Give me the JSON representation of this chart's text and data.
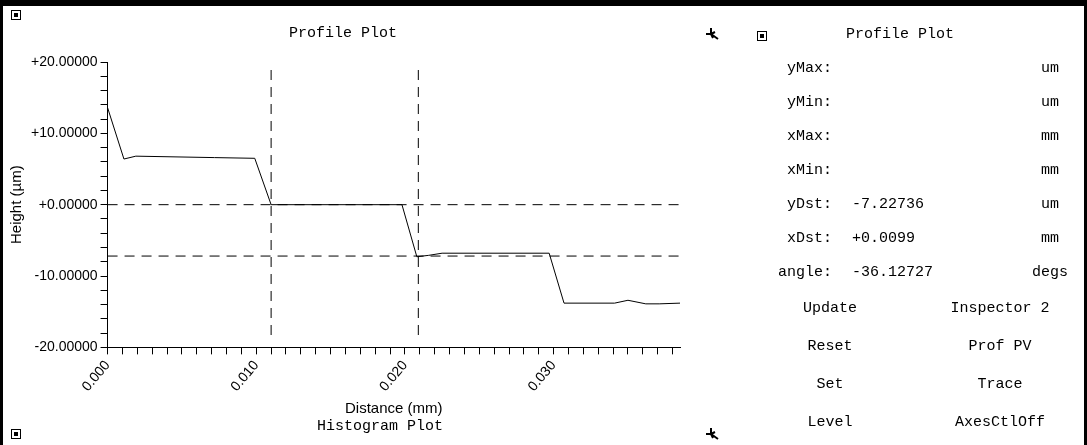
{
  "chart_data": [
    {
      "type": "line",
      "title": "Profile Plot",
      "xlabel": "Distance (mm)",
      "ylabel": "Height (µm)",
      "xlim": [
        0,
        0.0385
      ],
      "xticks": [
        {
          "value": 0,
          "label": "0.000"
        },
        {
          "value": 0.001,
          "label": null
        },
        {
          "value": 0.002,
          "label": null
        },
        {
          "value": 0.003,
          "label": null
        },
        {
          "value": 0.004,
          "label": null
        },
        {
          "value": 0.005,
          "label": null
        },
        {
          "value": 0.006,
          "label": null
        },
        {
          "value": 0.007,
          "label": null
        },
        {
          "value": 0.008,
          "label": null
        },
        {
          "value": 0.009,
          "label": null
        },
        {
          "value": 0.01,
          "label": "0.010"
        },
        {
          "value": 0.011,
          "label": null
        },
        {
          "value": 0.012,
          "label": null
        },
        {
          "value": 0.013,
          "label": null
        },
        {
          "value": 0.014,
          "label": null
        },
        {
          "value": 0.015,
          "label": null
        },
        {
          "value": 0.016,
          "label": null
        },
        {
          "value": 0.017,
          "label": null
        },
        {
          "value": 0.018,
          "label": null
        },
        {
          "value": 0.019,
          "label": null
        },
        {
          "value": 0.02,
          "label": "0.020"
        },
        {
          "value": 0.021,
          "label": null
        },
        {
          "value": 0.022,
          "label": null
        },
        {
          "value": 0.023,
          "label": null
        },
        {
          "value": 0.024,
          "label": null
        },
        {
          "value": 0.025,
          "label": null
        },
        {
          "value": 0.026,
          "label": null
        },
        {
          "value": 0.027,
          "label": null
        },
        {
          "value": 0.028,
          "label": null
        },
        {
          "value": 0.029,
          "label": null
        },
        {
          "value": 0.03,
          "label": "0.030"
        },
        {
          "value": 0.031,
          "label": null
        },
        {
          "value": 0.032,
          "label": null
        },
        {
          "value": 0.033,
          "label": null
        },
        {
          "value": 0.034,
          "label": null
        },
        {
          "value": 0.035,
          "label": null
        },
        {
          "value": 0.036,
          "label": null
        },
        {
          "value": 0.037,
          "label": null
        },
        {
          "value": 0.038,
          "label": null
        }
      ],
      "ylim": [
        -20,
        20
      ],
      "yticks": [
        {
          "value": -20,
          "label": "-20.00000"
        },
        {
          "value": -18,
          "label": null
        },
        {
          "value": -16,
          "label": null
        },
        {
          "value": -14,
          "label": null
        },
        {
          "value": -12,
          "label": null
        },
        {
          "value": -10,
          "label": "-10.00000"
        },
        {
          "value": -8,
          "label": null
        },
        {
          "value": -6,
          "label": null
        },
        {
          "value": -4,
          "label": null
        },
        {
          "value": -2,
          "label": null
        },
        {
          "value": 0,
          "label": "+0.00000"
        },
        {
          "value": 2,
          "label": null
        },
        {
          "value": 4,
          "label": null
        },
        {
          "value": 6,
          "label": null
        },
        {
          "value": 8,
          "label": null
        },
        {
          "value": 10,
          "label": "+10.00000"
        },
        {
          "value": 12,
          "label": null
        },
        {
          "value": 14,
          "label": null
        },
        {
          "value": 16,
          "label": null
        },
        {
          "value": 18,
          "label": null
        },
        {
          "value": 20,
          "label": "+20.00000"
        }
      ],
      "x": [
        0,
        0.0011,
        0.0019,
        0.0072,
        0.0099,
        0.011,
        0.0198,
        0.0208,
        0.0216,
        0.0225,
        0.0297,
        0.0307,
        0.0341,
        0.035,
        0.0362,
        0.0371,
        0.0385
      ],
      "series": [
        {
          "color": "#000000",
          "values": [
            13.6,
            6.4,
            6.8,
            6.6,
            6.5,
            0,
            0,
            -7.3,
            -7.1,
            -6.8,
            -6.8,
            -13.8,
            -13.8,
            -13.4,
            -13.9,
            -13.9,
            -13.8
          ]
        }
      ],
      "ref_lines": [
        {
          "axis": "y",
          "value": 0,
          "line_style": "dashed",
          "color": "#000000"
        },
        {
          "axis": "y",
          "value": -7.2,
          "line_style": "dashed",
          "color": "#000000"
        },
        {
          "axis": "x",
          "value": 0.011,
          "line_style": "dashed",
          "color": "#000000"
        },
        {
          "axis": "x",
          "value": 0.0209,
          "line_style": "dashed",
          "color": "#000000"
        }
      ],
      "annotations": [
        "Histogram Plot"
      ],
      "grid": false,
      "legend": false,
      "marker": "none",
      "line_style": "solid"
    },
    {
      "type": "other",
      "title": "Profile Plot",
      "annotations": [
        "yMax:",
        "um",
        "yMin:",
        "um",
        "xMax:",
        "mm",
        "xMin:",
        "mm",
        "yDst:",
        "-7.22736",
        "um",
        "xDst:",
        "+0.0099",
        "mm",
        "angle:",
        "-36.12727",
        "degs",
        "Update",
        "Inspector 2",
        "Reset",
        "Prof PV",
        "Set",
        "Trace",
        "Level",
        "AxesCtlOff"
      ]
    }
  ]
}
